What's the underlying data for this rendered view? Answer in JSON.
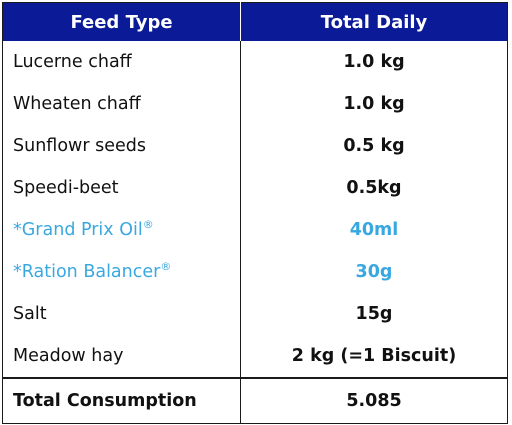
{
  "headers": {
    "feed_type": "Feed Type",
    "total_daily": "Total Daily"
  },
  "rows": [
    {
      "name": "Lucerne chaff",
      "amount": "1.0 kg"
    },
    {
      "name": "Wheaten chaff",
      "amount": "1.0 kg"
    },
    {
      "name": "Sunflowr seeds",
      "amount": "0.5 kg"
    },
    {
      "name": "Speedi-beet",
      "amount": "0.5kg"
    },
    {
      "name": "*Grand Prix Oil",
      "sup": "®",
      "amount": "40ml"
    },
    {
      "name": "*Ration Balancer",
      "sup": "®",
      "amount": "30g"
    },
    {
      "name": "Salt",
      "amount": "15g"
    },
    {
      "name": "Meadow hay",
      "amount": "2 kg (=1 Biscuit)"
    }
  ],
  "total": {
    "label": "Total Consumption",
    "value": "5.085"
  },
  "colors": {
    "header_bg": "#0b1a96",
    "highlight_text": "#3aa8e0"
  }
}
